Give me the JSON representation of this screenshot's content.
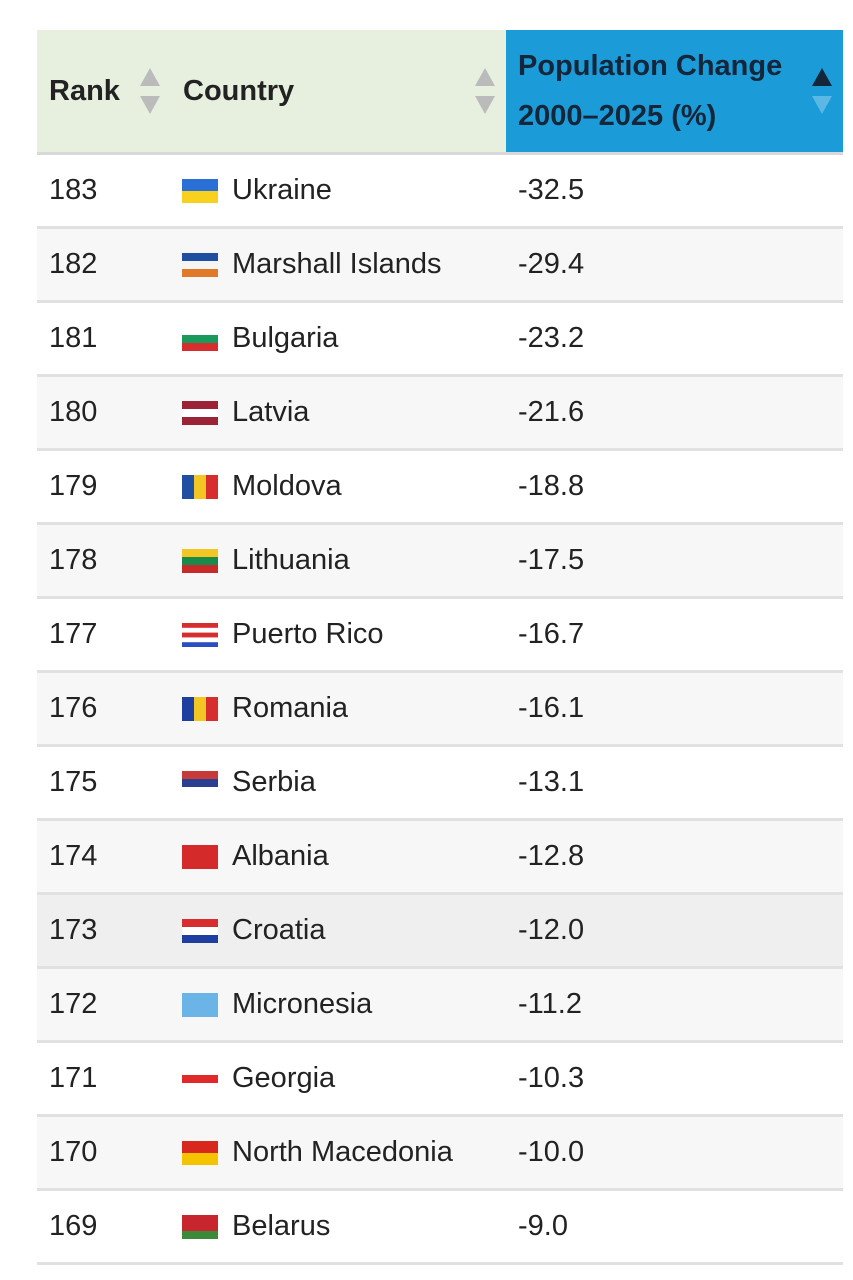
{
  "table": {
    "columns": [
      "Rank",
      "Country",
      "Population Change 2000–2025 (%)"
    ],
    "rows": [
      [
        183,
        "Ukraine",
        "-32.5"
      ],
      [
        182,
        "Marshall Islands",
        "-29.4"
      ],
      [
        181,
        "Bulgaria",
        "-23.2"
      ],
      [
        180,
        "Latvia",
        "-21.6"
      ],
      [
        179,
        "Moldova",
        "-18.8"
      ],
      [
        178,
        "Lithuania",
        "-17.5"
      ],
      [
        177,
        "Puerto Rico",
        "-16.7"
      ],
      [
        176,
        "Romania",
        "-16.1"
      ],
      [
        175,
        "Serbia",
        "-13.1"
      ],
      [
        174,
        "Albania",
        "-12.8"
      ],
      [
        173,
        "Croatia",
        "-12.0"
      ],
      [
        172,
        "Micronesia",
        "-11.2"
      ],
      [
        171,
        "Georgia",
        "-10.3"
      ],
      [
        170,
        "North Macedonia",
        "-10.0"
      ],
      [
        169,
        "Belarus",
        "-9.0"
      ]
    ]
  }
}
